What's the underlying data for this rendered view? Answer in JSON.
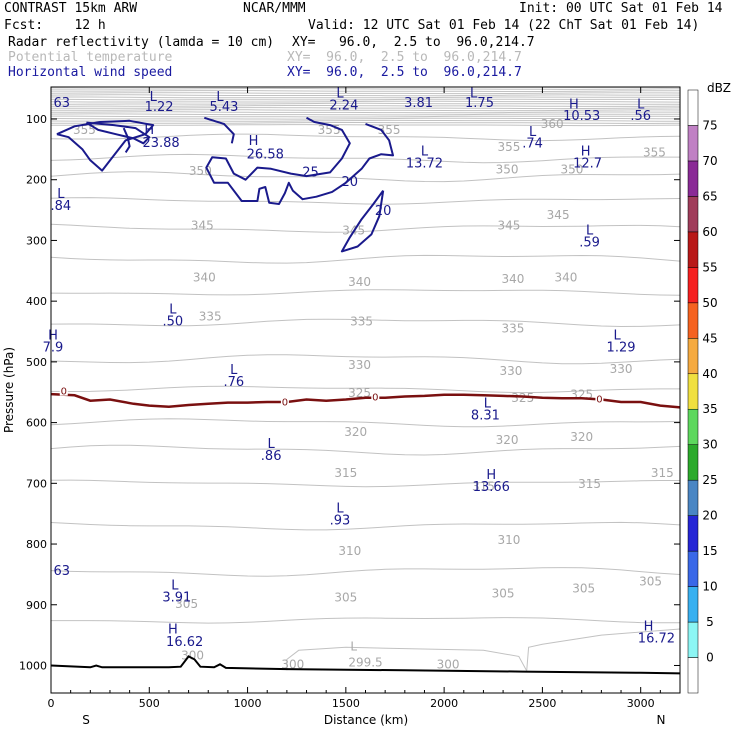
{
  "header": {
    "model": "CONTRAST 15km ARW",
    "center": "NCAR/MMM",
    "init": "Init: 00 UTC Sat 01 Feb 14",
    "fcst": "Fcst:    12 h",
    "valid": "Valid: 12 UTC Sat 01 Feb 14 (22 ChT Sat 01 Feb 14)",
    "fields": [
      {
        "name": "Radar reflectivity (lamda = 10 cm)",
        "xy": "XY=   96.0,  2.5 to  96.0,214.7"
      },
      {
        "name": "Potential temperature",
        "xy": "XY=  96.0,  2.5 to  96.0,214.7"
      },
      {
        "name": "Horizontal wind speed",
        "xy": "XY=  96.0,  2.5 to  96.0,214.7"
      }
    ]
  },
  "chart_data": {
    "type": "cross-section",
    "xlabel": "Distance (km)",
    "ylabel": "Pressure (hPa)",
    "xlim": [
      0,
      3200
    ],
    "ylim": [
      1050,
      30
    ],
    "x_ticks": [
      0,
      500,
      1000,
      1500,
      2000,
      2500,
      3000
    ],
    "y_ticks": [
      100,
      200,
      300,
      400,
      500,
      600,
      700,
      800,
      900,
      1000
    ],
    "endpoints": {
      "left": "S",
      "right": "N"
    },
    "colorbar": {
      "title": "dBZ",
      "levels": [
        0,
        5,
        10,
        15,
        20,
        25,
        30,
        35,
        40,
        45,
        50,
        55,
        60,
        65,
        70,
        75
      ],
      "colors": [
        "#ffffff",
        "#8cf6f4",
        "#38b0f0",
        "#3a68e8",
        "#2626d6",
        "#4a86c4",
        "#2caa2c",
        "#5ed85e",
        "#f0e040",
        "#f5aa40",
        "#f56220",
        "#f52020",
        "#b81818",
        "#a03c5a",
        "#8a2a96",
        "#c080c4",
        "#ffffff"
      ]
    },
    "theta_labels": [
      {
        "v": "355",
        "x": 170,
        "p": 125
      },
      {
        "v": "355",
        "x": 1415,
        "p": 125
      },
      {
        "v": "355",
        "x": 1720,
        "p": 125
      },
      {
        "v": "360",
        "x": 2550,
        "p": 115
      },
      {
        "v": "355",
        "x": 2330,
        "p": 153
      },
      {
        "v": "355",
        "x": 3070,
        "p": 162
      },
      {
        "v": "350",
        "x": 760,
        "p": 192
      },
      {
        "v": "350",
        "x": 2320,
        "p": 190
      },
      {
        "v": "350",
        "x": 2650,
        "p": 190
      },
      {
        "v": "345",
        "x": 1540,
        "p": 290
      },
      {
        "v": "345",
        "x": 2330,
        "p": 282
      },
      {
        "v": "345",
        "x": 2580,
        "p": 265
      },
      {
        "v": "345",
        "x": 770,
        "p": 282
      },
      {
        "v": "340",
        "x": 780,
        "p": 368
      },
      {
        "v": "340",
        "x": 1570,
        "p": 375
      },
      {
        "v": "340",
        "x": 2350,
        "p": 370
      },
      {
        "v": "340",
        "x": 2620,
        "p": 368
      },
      {
        "v": "335",
        "x": 810,
        "p": 432
      },
      {
        "v": "335",
        "x": 1580,
        "p": 440
      },
      {
        "v": "335",
        "x": 2350,
        "p": 452
      },
      {
        "v": "330",
        "x": 1570,
        "p": 512
      },
      {
        "v": "330",
        "x": 2340,
        "p": 522
      },
      {
        "v": "330",
        "x": 2900,
        "p": 518
      },
      {
        "v": "325",
        "x": 1570,
        "p": 558
      },
      {
        "v": "325",
        "x": 2400,
        "p": 566
      },
      {
        "v": "325",
        "x": 2700,
        "p": 560
      },
      {
        "v": "320",
        "x": 1550,
        "p": 622
      },
      {
        "v": "320",
        "x": 2320,
        "p": 635
      },
      {
        "v": "320",
        "x": 2700,
        "p": 630
      },
      {
        "v": "315",
        "x": 1500,
        "p": 690
      },
      {
        "v": "315",
        "x": 2200,
        "p": 712
      },
      {
        "v": "315",
        "x": 2740,
        "p": 708
      },
      {
        "v": "315",
        "x": 3110,
        "p": 690
      },
      {
        "v": "310",
        "x": 1520,
        "p": 818
      },
      {
        "v": "310",
        "x": 2330,
        "p": 800
      },
      {
        "v": "305",
        "x": 1500,
        "p": 895
      },
      {
        "v": "305",
        "x": 2300,
        "p": 888
      },
      {
        "v": "305",
        "x": 2710,
        "p": 880
      },
      {
        "v": "305",
        "x": 3050,
        "p": 868
      },
      {
        "v": "305",
        "x": 690,
        "p": 905
      },
      {
        "v": "300",
        "x": 1230,
        "p": 1005
      },
      {
        "v": "300",
        "x": 2020,
        "p": 1005
      },
      {
        "v": "300",
        "x": 720,
        "p": 990
      },
      {
        "v": "299.5",
        "x": 1600,
        "p": 1002
      },
      {
        "v": "L",
        "x": 1540,
        "p": 975
      }
    ],
    "wind_labels": [
      {
        "t": "63",
        "x": 55,
        "p": 80
      },
      {
        "t": "L",
        "x": 520,
        "p": 70
      },
      {
        "t": "1.22",
        "x": 550,
        "p": 87
      },
      {
        "t": "L",
        "x": 860,
        "p": 70
      },
      {
        "t": "5.43",
        "x": 880,
        "p": 87
      },
      {
        "t": "L",
        "x": 1470,
        "p": 65
      },
      {
        "t": "2.24",
        "x": 1490,
        "p": 84
      },
      {
        "t": "3.81",
        "x": 1870,
        "p": 80
      },
      {
        "t": "L",
        "x": 2150,
        "p": 65
      },
      {
        "t": "1.75",
        "x": 2180,
        "p": 80
      },
      {
        "t": "H",
        "x": 2660,
        "p": 83
      },
      {
        "t": "10.53",
        "x": 2700,
        "p": 102
      },
      {
        "t": "L",
        "x": 3000,
        "p": 83
      },
      {
        "t": ".56",
        "x": 3000,
        "p": 102
      },
      {
        "t": "H",
        "x": 500,
        "p": 125
      },
      {
        "t": "23.88",
        "x": 560,
        "p": 146
      },
      {
        "t": "H",
        "x": 1030,
        "p": 143
      },
      {
        "t": "26.58",
        "x": 1090,
        "p": 165
      },
      {
        "t": "L",
        "x": 2450,
        "p": 128
      },
      {
        "t": ".74",
        "x": 2450,
        "p": 147
      },
      {
        "t": "L",
        "x": 1900,
        "p": 160
      },
      {
        "t": "13.72",
        "x": 1900,
        "p": 180
      },
      {
        "t": "H",
        "x": 2720,
        "p": 160
      },
      {
        "t": "12.7",
        "x": 2730,
        "p": 180
      },
      {
        "t": "L",
        "x": 50,
        "p": 230
      },
      {
        "t": ".84",
        "x": 50,
        "p": 250
      },
      {
        "t": "L",
        "x": 2740,
        "p": 290
      },
      {
        "t": ".59",
        "x": 2740,
        "p": 310
      },
      {
        "t": "L",
        "x": 620,
        "p": 420
      },
      {
        "t": ".50",
        "x": 620,
        "p": 440
      },
      {
        "t": "H",
        "x": 10,
        "p": 463
      },
      {
        "t": "7.9",
        "x": 10,
        "p": 483
      },
      {
        "t": "L",
        "x": 2880,
        "p": 463
      },
      {
        "t": "1.29",
        "x": 2900,
        "p": 483
      },
      {
        "t": "L",
        "x": 930,
        "p": 520
      },
      {
        "t": ".76",
        "x": 930,
        "p": 540
      },
      {
        "t": "L",
        "x": 2220,
        "p": 575
      },
      {
        "t": "8.31",
        "x": 2210,
        "p": 595
      },
      {
        "t": "L",
        "x": 1120,
        "p": 642
      },
      {
        "t": ".86",
        "x": 1120,
        "p": 662
      },
      {
        "t": "H",
        "x": 2240,
        "p": 693
      },
      {
        "t": "13.66",
        "x": 2240,
        "p": 713
      },
      {
        "t": "L",
        "x": 1470,
        "p": 748
      },
      {
        "t": ".93",
        "x": 1470,
        "p": 768
      },
      {
        "t": "63",
        "x": 55,
        "p": 851
      },
      {
        "t": "L",
        "x": 630,
        "p": 875
      },
      {
        "t": "3.91",
        "x": 640,
        "p": 895
      },
      {
        "t": "H",
        "x": 620,
        "p": 947
      },
      {
        "t": "16.62",
        "x": 680,
        "p": 968
      },
      {
        "t": "H",
        "x": 3040,
        "p": 942
      },
      {
        "t": "16.72",
        "x": 3080,
        "p": 962
      },
      {
        "t": "25",
        "x": 1320,
        "p": 195
      },
      {
        "t": "20",
        "x": 1520,
        "p": 210
      },
      {
        "t": "20",
        "x": 1690,
        "p": 258
      }
    ],
    "zero_labels": [
      {
        "t": "0",
        "x": 65,
        "p": 549
      },
      {
        "t": "0",
        "x": 1190,
        "p": 567
      },
      {
        "t": "0",
        "x": 1650,
        "p": 559
      },
      {
        "t": "0",
        "x": 2790,
        "p": 562
      }
    ],
    "wind_contours": [
      [
        [
          30,
          125
        ],
        [
          120,
          112
        ],
        [
          250,
          105
        ],
        [
          400,
          103
        ],
        [
          520,
          110
        ],
        [
          480,
          125
        ],
        [
          380,
          135
        ],
        [
          320,
          160
        ],
        [
          260,
          185
        ],
        [
          200,
          168
        ],
        [
          160,
          150
        ],
        [
          90,
          130
        ],
        [
          30,
          125
        ]
      ],
      [
        [
          180,
          106
        ],
        [
          320,
          110
        ],
        [
          430,
          115
        ],
        [
          500,
          130
        ],
        [
          470,
          140
        ],
        [
          420,
          132
        ],
        [
          330,
          125
        ],
        [
          240,
          118
        ],
        [
          180,
          106
        ]
      ],
      [
        [
          370,
          115
        ],
        [
          390,
          130
        ],
        [
          400,
          145
        ],
        [
          380,
          155
        ]
      ],
      [
        [
          780,
          98
        ],
        [
          880,
          108
        ],
        [
          930,
          125
        ],
        [
          920,
          140
        ]
      ],
      [
        [
          1600,
          108
        ],
        [
          1680,
          118
        ],
        [
          1720,
          135
        ],
        [
          1740,
          160
        ],
        [
          1680,
          158
        ],
        [
          1620,
          165
        ],
        [
          1580,
          182
        ],
        [
          1500,
          205
        ],
        [
          1430,
          220
        ],
        [
          1350,
          228
        ],
        [
          1280,
          232
        ],
        [
          1230,
          218
        ],
        [
          1210,
          205
        ],
        [
          1190,
          222
        ],
        [
          1160,
          240
        ],
        [
          1110,
          238
        ],
        [
          1090,
          212
        ],
        [
          1060,
          215
        ],
        [
          1050,
          235
        ],
        [
          970,
          235
        ],
        [
          900,
          205
        ],
        [
          830,
          205
        ],
        [
          790,
          180
        ],
        [
          820,
          163
        ],
        [
          890,
          165
        ],
        [
          930,
          190
        ],
        [
          990,
          200
        ],
        [
          1050,
          180
        ],
        [
          1120,
          182
        ],
        [
          1220,
          190
        ],
        [
          1300,
          194
        ],
        [
          1420,
          188
        ],
        [
          1480,
          165
        ],
        [
          1520,
          140
        ],
        [
          1480,
          118
        ],
        [
          1420,
          110
        ],
        [
          1340,
          105
        ],
        [
          1300,
          98
        ]
      ],
      [
        [
          1690,
          218
        ],
        [
          1640,
          240
        ],
        [
          1580,
          265
        ],
        [
          1520,
          295
        ],
        [
          1480,
          318
        ],
        [
          1560,
          310
        ],
        [
          1630,
          290
        ],
        [
          1670,
          260
        ],
        [
          1690,
          218
        ]
      ]
    ],
    "zero_dbz_line": [
      [
        0,
        553
      ],
      [
        120,
        555
      ],
      [
        200,
        564
      ],
      [
        300,
        562
      ],
      [
        420,
        569
      ],
      [
        500,
        572
      ],
      [
        600,
        574
      ],
      [
        700,
        571
      ],
      [
        800,
        569
      ],
      [
        900,
        567
      ],
      [
        1000,
        567
      ],
      [
        1100,
        566
      ],
      [
        1200,
        566
      ],
      [
        1300,
        562
      ],
      [
        1400,
        564
      ],
      [
        1500,
        562
      ],
      [
        1600,
        559
      ],
      [
        1700,
        559
      ],
      [
        1800,
        557
      ],
      [
        1900,
        556
      ],
      [
        2000,
        554
      ],
      [
        2100,
        554
      ],
      [
        2200,
        555
      ],
      [
        2300,
        556
      ],
      [
        2400,
        557
      ],
      [
        2500,
        559
      ],
      [
        2600,
        560
      ],
      [
        2700,
        560
      ],
      [
        2800,
        562
      ],
      [
        2900,
        566
      ],
      [
        3000,
        566
      ],
      [
        3100,
        572
      ],
      [
        3200,
        575
      ]
    ],
    "terrain": [
      [
        0,
        1000
      ],
      [
        200,
        1003
      ],
      [
        230,
        1000
      ],
      [
        260,
        1003
      ],
      [
        600,
        1003
      ],
      [
        660,
        1002
      ],
      [
        700,
        985
      ],
      [
        730,
        990
      ],
      [
        760,
        1002
      ],
      [
        830,
        1003
      ],
      [
        860,
        998
      ],
      [
        890,
        1004
      ],
      [
        1200,
        1006
      ],
      [
        1800,
        1008
      ],
      [
        2400,
        1010
      ],
      [
        3000,
        1012
      ],
      [
        3200,
        1013
      ]
    ]
  }
}
